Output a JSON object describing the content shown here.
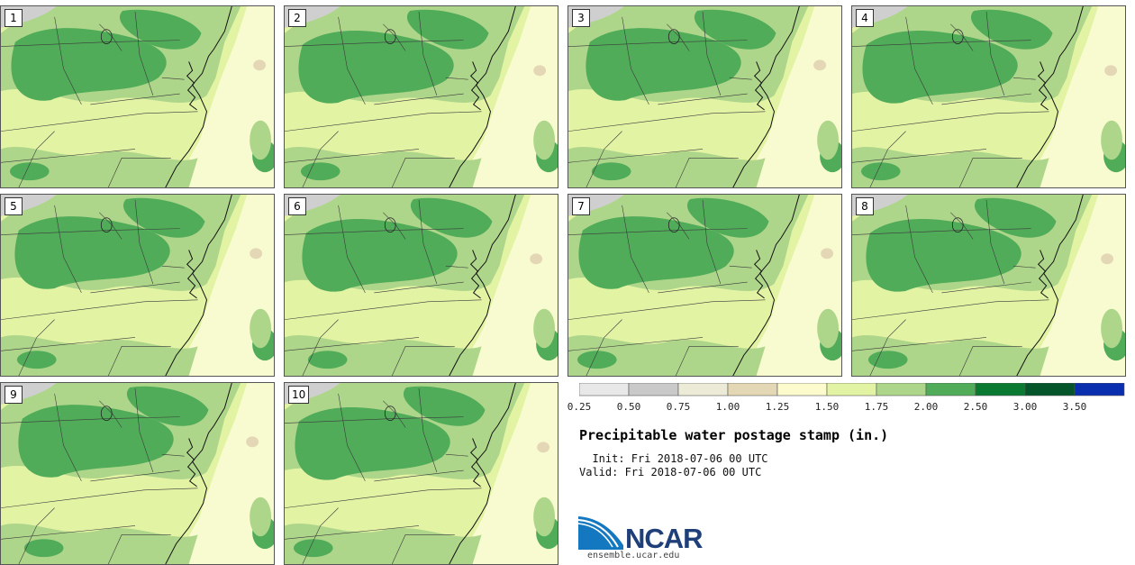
{
  "members": [
    "1",
    "2",
    "3",
    "4",
    "5",
    "6",
    "7",
    "8",
    "9",
    "10"
  ],
  "colorbar": {
    "ticks": [
      "0.25",
      "0.50",
      "0.75",
      "1.00",
      "1.25",
      "1.50",
      "1.75",
      "2.00",
      "2.50",
      "3.00",
      "3.50"
    ],
    "colors": [
      "#e8e8e8",
      "#c9c9c9",
      "#ecebd8",
      "#e4d7b5",
      "#fbfbcd",
      "#e3f3a4",
      "#aed68a",
      "#51ac5a",
      "#0a7a32",
      "#04552a",
      "#0a2fae"
    ]
  },
  "title": "Precipitable water postage stamp (in.)",
  "init_line": "  Init: Fri 2018-07-06 00 UTC",
  "valid_line": "Valid: Fri 2018-07-06 00 UTC",
  "logo": {
    "name": "NCAR",
    "url": "ensemble.ucar.edu",
    "colors": {
      "swoosh_blue": "#1478c0",
      "text_navy": "#1f3f7a"
    }
  },
  "map_colors": {
    "ocean": "#f7fbcf",
    "light_green": "#e3f3a4",
    "mid_green": "#aed68a",
    "dark_green": "#51ac5a",
    "gray": "#cfcfcf",
    "tan": "#e4d7b5"
  }
}
